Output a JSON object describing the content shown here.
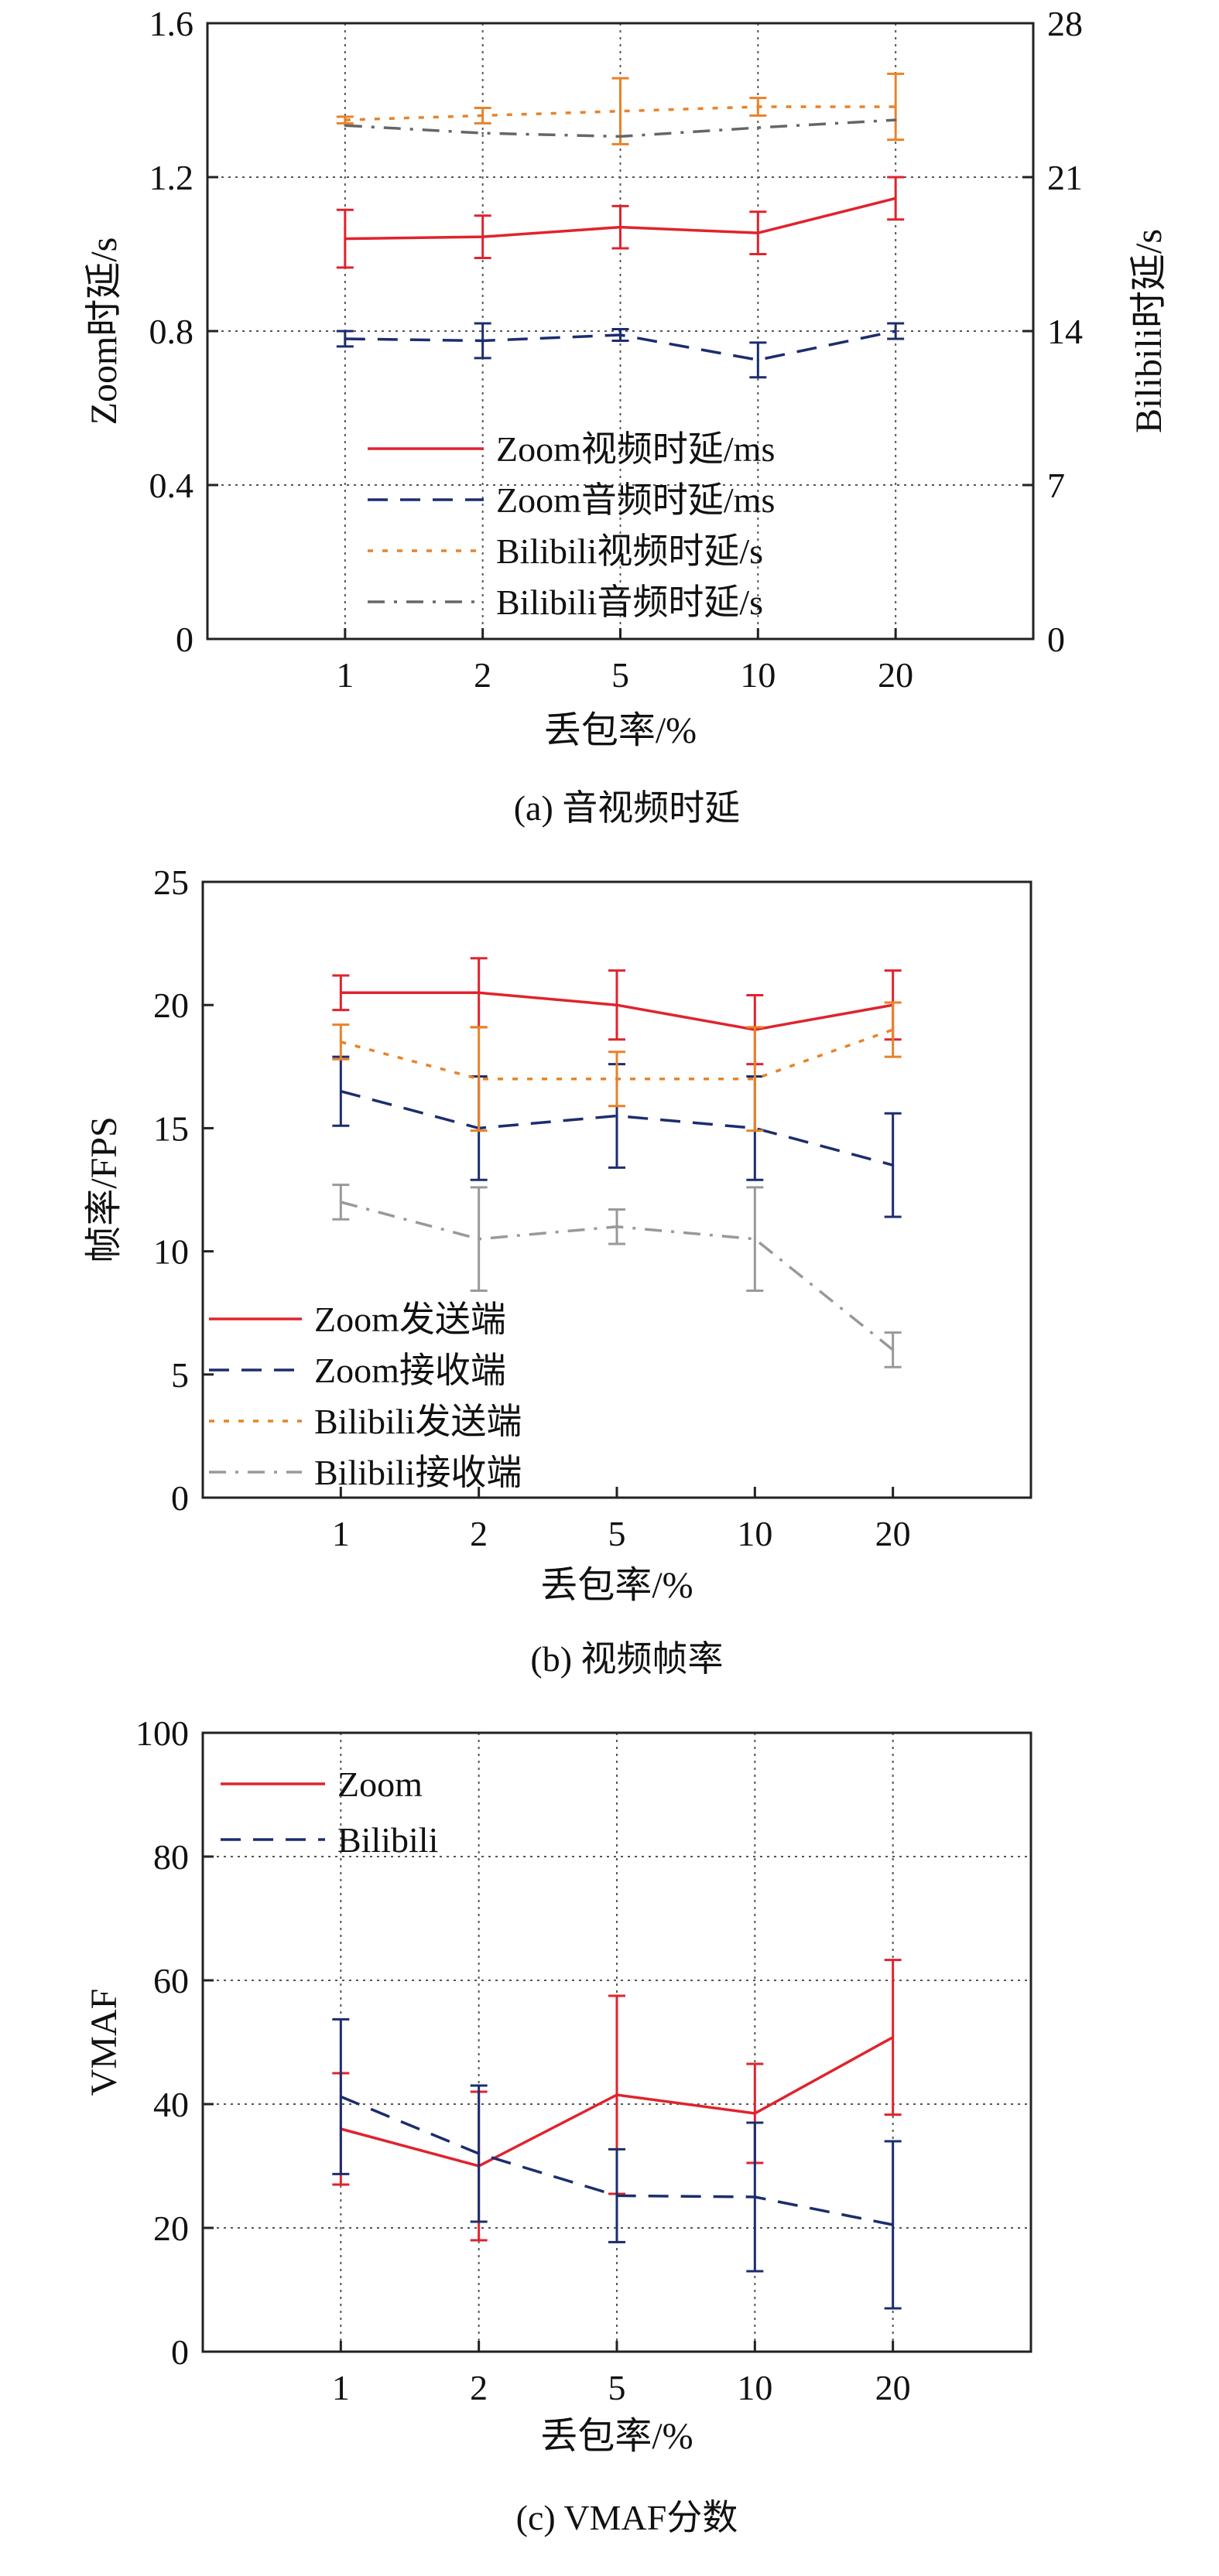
{
  "colors": {
    "zoom": "#e0232d",
    "bilibili": "#1c2d6e",
    "bilibili_send": "#e8822a",
    "bilibili_recv_a": "#666666",
    "bilibili_recv_b": "#999999"
  },
  "chart_data": [
    {
      "type": "line",
      "caption": "(a)  音视频时延",
      "xlabel": "丢包率/%",
      "ylabel": "Zoom时延/s",
      "ylabel_right": "Bilibili时延/s",
      "categories": [
        "1",
        "2",
        "5",
        "10",
        "20"
      ],
      "ylim": [
        0,
        1.6
      ],
      "yticks": [
        0,
        0.4,
        0.8,
        1.2,
        1.6
      ],
      "ytick_labels": [
        "0",
        "0.4",
        "0.8",
        "1.2",
        "1.6"
      ],
      "ylim_right": [
        0,
        28
      ],
      "yticks_right": [
        0,
        7,
        14,
        21,
        28
      ],
      "grid": true,
      "legend_position": "lower-center",
      "series": [
        {
          "name": "Zoom视频时延/ms",
          "axis": "left",
          "color": "#e0232d",
          "dash": "solid",
          "values": [
            1.04,
            1.045,
            1.07,
            1.055,
            1.145
          ],
          "err": [
            0.075,
            0.055,
            0.055,
            0.055,
            0.055
          ]
        },
        {
          "name": "Zoom音频时延/ms",
          "axis": "left",
          "color": "#1c2d6e",
          "dash": "longdash",
          "values": [
            0.78,
            0.775,
            0.79,
            0.725,
            0.8
          ],
          "err": [
            0.02,
            0.045,
            0.015,
            0.045,
            0.02
          ]
        },
        {
          "name": "Bilibili视频时延/s",
          "axis": "right",
          "color": "#e8822a",
          "dash": "dot",
          "values": [
            23.6,
            23.8,
            24.0,
            24.2,
            24.2
          ],
          "err": [
            0.15,
            0.35,
            1.5,
            0.4,
            1.5
          ]
        },
        {
          "name": "Bilibili音频时延/s",
          "axis": "right",
          "color": "#666666",
          "dash": "dashdot",
          "values": [
            23.35,
            23.0,
            22.85,
            23.25,
            23.6
          ],
          "err": [
            0,
            0,
            0,
            0,
            0
          ]
        }
      ]
    },
    {
      "type": "line",
      "caption": "(b)  视频帧率",
      "xlabel": "丢包率/%",
      "ylabel": "帧率/FPS",
      "categories": [
        "1",
        "2",
        "5",
        "10",
        "20"
      ],
      "ylim": [
        0,
        25
      ],
      "yticks": [
        0,
        5,
        10,
        15,
        20,
        25
      ],
      "ytick_labels": [
        "0",
        "5",
        "10",
        "15",
        "20",
        "25"
      ],
      "grid": false,
      "legend_position": "lower-left",
      "series": [
        {
          "name": "Zoom发送端",
          "color": "#e0232d",
          "dash": "solid",
          "values": [
            20.5,
            20.5,
            20.0,
            19.0,
            20.0
          ],
          "err": [
            0.7,
            1.4,
            1.4,
            1.4,
            1.4
          ]
        },
        {
          "name": "Zoom接收端",
          "color": "#1c2d6e",
          "dash": "longdash",
          "values": [
            16.5,
            15.0,
            15.5,
            15.0,
            13.5
          ],
          "err": [
            1.4,
            2.1,
            2.1,
            2.1,
            2.1
          ]
        },
        {
          "name": "Bilibili发送端",
          "color": "#e8822a",
          "dash": "dot",
          "values": [
            18.5,
            17.0,
            17.0,
            17.0,
            19.0
          ],
          "err": [
            0.7,
            2.1,
            1.1,
            2.1,
            1.1
          ]
        },
        {
          "name": "Bilibili接收端",
          "color": "#999999",
          "dash": "dashdot",
          "values": [
            12.0,
            10.5,
            11.0,
            10.5,
            6.0
          ],
          "err": [
            0.7,
            2.1,
            0.7,
            2.1,
            0.7
          ]
        }
      ]
    },
    {
      "type": "line",
      "caption": "(c)  VMAF分数",
      "xlabel": "丢包率/%",
      "ylabel": "VMAF",
      "categories": [
        "1",
        "2",
        "5",
        "10",
        "20"
      ],
      "ylim": [
        0,
        100
      ],
      "yticks": [
        0,
        20,
        40,
        60,
        80,
        100
      ],
      "ytick_labels": [
        "0",
        "20",
        "40",
        "60",
        "80",
        "100"
      ],
      "grid": true,
      "legend_position": "top-left",
      "series": [
        {
          "name": "Zoom",
          "color": "#e0232d",
          "dash": "solid",
          "values": [
            36.0,
            30.0,
            41.5,
            38.5,
            50.8
          ],
          "err": [
            9.0,
            12.0,
            16.0,
            8.0,
            12.5
          ]
        },
        {
          "name": "Bilibili",
          "color": "#1c2d6e",
          "dash": "longdash",
          "values": [
            41.2,
            32.0,
            25.2,
            25.0,
            20.5
          ],
          "err": [
            12.5,
            11.0,
            7.5,
            12.0,
            13.5
          ]
        }
      ]
    }
  ]
}
